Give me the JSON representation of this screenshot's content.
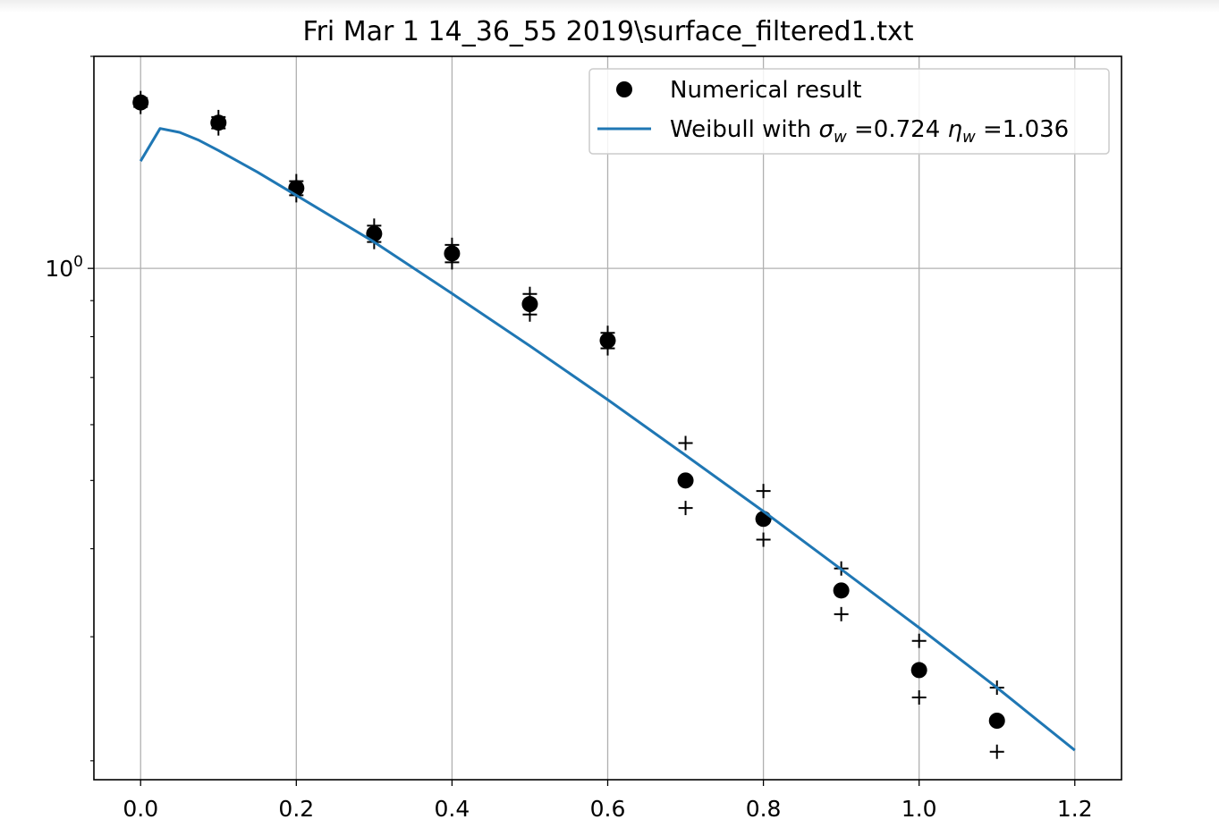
{
  "chart_data": {
    "type": "scatter",
    "title": "Fri Mar  1 14_36_55 2019\\surface_filtered1.txt",
    "xlabel": "",
    "ylabel": "",
    "xlim": [
      -0.06,
      1.26
    ],
    "ylim": [
      0.188,
      2.0
    ],
    "yscale": "log",
    "grid": true,
    "legend_position": "top-right",
    "x_ticks": [
      "0.0",
      "0.2",
      "0.4",
      "0.6",
      "0.8",
      "1.0",
      "1.2"
    ],
    "x_tick_values": [
      0.0,
      0.2,
      0.4,
      0.6,
      0.8,
      1.0,
      1.2
    ],
    "y_major_ticks": [
      {
        "value": 1.0,
        "base": "10",
        "exp": "0"
      }
    ],
    "y_minor_ticks": [
      0.2,
      0.3,
      0.4,
      0.5,
      0.6,
      0.7,
      0.8,
      0.9,
      2.0
    ],
    "series": [
      {
        "name": "Numerical result",
        "kind": "points",
        "color": "#000000",
        "x": [
          0.0,
          0.1,
          0.2,
          0.3,
          0.4,
          0.5,
          0.6,
          0.7,
          0.8,
          0.9,
          1.0,
          1.1
        ],
        "y": [
          1.72,
          1.61,
          1.3,
          1.12,
          1.05,
          0.89,
          0.79,
          0.5,
          0.441,
          0.349,
          0.269,
          0.228
        ]
      },
      {
        "name": "",
        "kind": "error-plus",
        "color": "#000000",
        "x": [
          0.0,
          0.0,
          0.1,
          0.1,
          0.2,
          0.2,
          0.3,
          0.3,
          0.4,
          0.4,
          0.5,
          0.5,
          0.6,
          0.6,
          0.7,
          0.7,
          0.8,
          0.8,
          0.9,
          0.9,
          1.0,
          1.0,
          1.1,
          1.1
        ],
        "y": [
          1.745,
          1.695,
          1.64,
          1.58,
          1.33,
          1.27,
          1.15,
          1.09,
          1.08,
          1.02,
          0.92,
          0.86,
          0.81,
          0.77,
          0.565,
          0.457,
          0.483,
          0.412,
          0.375,
          0.323,
          0.296,
          0.246,
          0.254,
          0.206
        ]
      },
      {
        "name": "Weibull with",
        "kind": "line",
        "color": "#1f77b4",
        "x": [
          0.0,
          0.025,
          0.05,
          0.075,
          0.1,
          0.15,
          0.2,
          0.3,
          0.4,
          0.5,
          0.6,
          0.7,
          0.8,
          0.9,
          1.0,
          1.1,
          1.2
        ],
        "y": [
          1.42,
          1.58,
          1.56,
          1.52,
          1.47,
          1.37,
          1.27,
          1.09,
          0.921,
          0.776,
          0.651,
          0.543,
          0.452,
          0.374,
          0.309,
          0.254,
          0.207
        ]
      }
    ],
    "legend": {
      "entries": [
        {
          "label": "Numerical result"
        },
        {
          "label_prefix": "Weibull with ",
          "sigma_symbol": "σ",
          "sigma_sub": "w",
          "sigma_value": " =0.724 ",
          "eta_symbol": "η",
          "eta_sub": "w",
          "eta_value": " =1.036"
        }
      ]
    }
  }
}
